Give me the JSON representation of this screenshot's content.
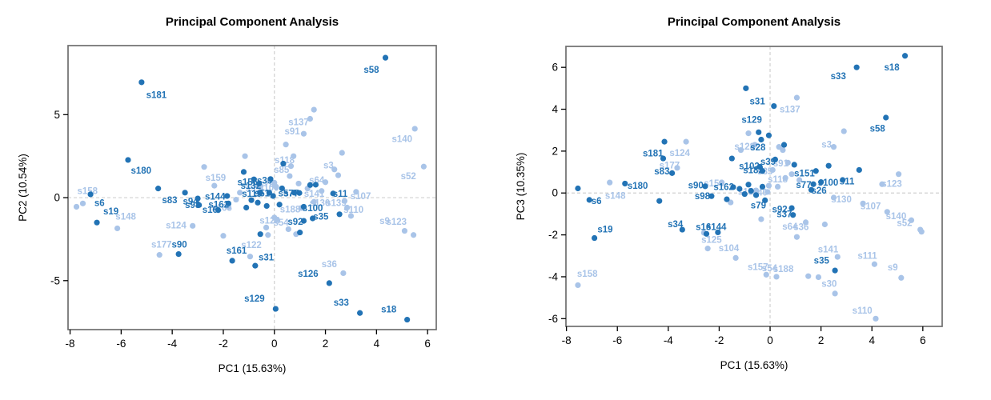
{
  "figure": {
    "background": "#ffffff",
    "colors": {
      "dark_points": "#2273b5",
      "light_points": "#a9c4e8",
      "axis_text": "#000000",
      "box_border": "#6e6e6e",
      "ref_line": "#d0d0d0"
    }
  },
  "chart_data": [
    {
      "type": "scatter",
      "title": "Principal Component Analysis",
      "xlabel": "PC1 (15.63%)",
      "ylabel": "PC2 (10.54%)",
      "xlim": [
        -8.08,
        6.34
      ],
      "ylim": [
        -7.95,
        9.16
      ],
      "xticks": [
        -8,
        -6,
        -4,
        -2,
        0,
        2,
        4,
        6
      ],
      "yticks": [
        -5,
        0,
        5
      ],
      "grid": "dashed reference lines at x=0 and y=0",
      "legend": "none",
      "point_format": "[x, y, shade(d=dark|l=light), label?, labelX?, labelY?]",
      "points": [
        [
          4.35,
          8.43,
          "d",
          "s58",
          3.8,
          7.72
        ],
        [
          -5.2,
          6.95,
          "d",
          "s181",
          -4.62,
          6.2
        ],
        [
          -5.73,
          2.27,
          "d",
          "s180",
          -5.22,
          1.65
        ],
        [
          -7.2,
          0.2,
          "d",
          "s6",
          -6.85,
          -0.32
        ],
        [
          -6.95,
          -1.5,
          "d",
          "s19",
          -6.4,
          -0.82
        ],
        [
          -3.5,
          0.3,
          "d",
          "s83",
          -4.1,
          -0.15
        ],
        [
          -3.75,
          -3.4,
          "d",
          "s90",
          -3.72,
          -2.82
        ],
        [
          -3.0,
          -0.05,
          "d",
          "s94",
          -3.28,
          -0.22
        ],
        [
          -2.95,
          -0.45,
          "d",
          "s98",
          -3.2,
          -0.42
        ],
        [
          -1.85,
          0.1,
          "d",
          "s144",
          -2.32,
          0.08
        ],
        [
          -1.8,
          -0.35,
          "d",
          "s162",
          -2.18,
          -0.4
        ],
        [
          -2.2,
          -0.75,
          "d",
          "s16",
          -2.52,
          -0.72
        ],
        [
          -1.65,
          -3.8,
          "d",
          "s161",
          -1.48,
          -3.18
        ],
        [
          -0.75,
          -4.1,
          "d",
          "s31",
          -0.32,
          -3.58
        ],
        [
          0.05,
          -6.7,
          "d",
          "s129",
          -0.78,
          -6.08
        ],
        [
          2.15,
          -5.15,
          "d",
          "s126",
          1.32,
          -4.58
        ],
        [
          3.35,
          -6.95,
          "d",
          "s33",
          2.62,
          -6.32
        ],
        [
          5.2,
          -7.35,
          "d",
          "s18",
          4.48,
          -6.72
        ],
        [
          2.3,
          0.25,
          "d",
          "s11",
          2.58,
          0.25
        ],
        [
          1.15,
          -0.55,
          "d",
          "s100",
          1.5,
          -0.62
        ],
        [
          1.5,
          -1.25,
          "d",
          "s35",
          1.82,
          -1.12
        ],
        [
          1.15,
          -1.4,
          "d",
          "s92",
          0.82,
          -1.45
        ],
        [
          -0.8,
          1.1,
          "d",
          "s155",
          -1.05,
          0.95
        ],
        [
          -0.6,
          0.85,
          "d",
          "s132",
          -0.92,
          0.72
        ],
        [
          -0.55,
          0.3,
          "d",
          "s119",
          -0.88,
          0.25
        ],
        [
          -0.2,
          0.3,
          "d",
          "s51",
          -0.48,
          0.26
        ],
        [
          0.78,
          0.3,
          "d",
          "s57",
          0.45,
          0.27
        ],
        [
          0.98,
          0.28,
          "d",
          "s77",
          0.66,
          0.26
        ],
        [
          -0.15,
          1.12,
          "d",
          "s39",
          -0.38,
          1.04
        ],
        [
          -7.5,
          -0.35,
          "l",
          "s158",
          -7.32,
          0.42
        ],
        [
          -6.15,
          -1.85,
          "l",
          "s148",
          -5.82,
          -1.12
        ],
        [
          -3.2,
          -1.7,
          "l",
          "s124",
          -3.85,
          -1.65
        ],
        [
          -4.5,
          -3.45,
          "l",
          "s177",
          -4.42,
          -2.82
        ],
        [
          -2.35,
          0.72,
          "l",
          "s159",
          -2.3,
          1.2
        ],
        [
          -0.95,
          -3.55,
          "l",
          "s122",
          -0.9,
          -2.85
        ],
        [
          2.7,
          -4.55,
          "l",
          "s36",
          2.15,
          -4.0
        ],
        [
          1.4,
          4.75,
          "l",
          "s137",
          0.95,
          4.55
        ],
        [
          1.15,
          3.85,
          "l",
          "s91",
          0.7,
          4.0
        ],
        [
          5.5,
          4.15,
          "l",
          "s140",
          5.0,
          3.55
        ],
        [
          5.85,
          1.87,
          "l",
          "s52",
          5.25,
          1.3
        ],
        [
          2.35,
          1.7,
          "l",
          "s3",
          2.12,
          1.95
        ],
        [
          2.0,
          0.93,
          "l",
          "s64",
          1.66,
          1.06
        ],
        [
          0.75,
          2.5,
          "l",
          "s118",
          0.4,
          2.26
        ],
        [
          0.65,
          1.9,
          "l",
          "s85",
          0.28,
          1.68
        ],
        [
          3.2,
          0.35,
          "l",
          "s107",
          3.38,
          0.1
        ],
        [
          2.85,
          -0.6,
          "l",
          "s110",
          3.1,
          -0.72
        ],
        [
          5.1,
          -2.0,
          "l",
          "s9",
          4.32,
          -1.4
        ],
        [
          5.45,
          -2.25,
          "l",
          "s123",
          4.78,
          -1.45
        ],
        [
          1.55,
          -0.25,
          "l",
          "s130",
          1.78,
          -0.32
        ],
        [
          2.75,
          -0.2,
          "l",
          "s139",
          2.42,
          -0.32
        ],
        [
          1.05,
          -0.62,
          "l",
          "s188",
          0.62,
          -0.7
        ],
        [
          0.1,
          -1.32,
          "l",
          "s54",
          0.26,
          -1.5
        ],
        [
          0.0,
          -1.2,
          "l",
          "s128",
          -0.18,
          -1.36
        ],
        [
          -0.55,
          0.65,
          "l",
          "s99",
          -0.84,
          0.56
        ],
        [
          0.0,
          0.9,
          "l",
          "s70",
          -0.3,
          0.82
        ],
        [
          0.07,
          0.65,
          "l",
          "s109",
          -0.22,
          0.6
        ],
        [
          -1.8,
          -0.55,
          "l",
          "s165",
          -2.06,
          -0.6
        ],
        [
          1.85,
          0.4,
          "l",
          "s141",
          1.56,
          0.24
        ],
        [
          -1.2,
          1.55,
          "d"
        ],
        [
          1.4,
          0.76,
          "d"
        ],
        [
          1.62,
          0.78,
          "d"
        ],
        [
          -4.55,
          0.55,
          "d"
        ],
        [
          0.35,
          2.05,
          "d"
        ],
        [
          -0.9,
          -0.15,
          "d"
        ],
        [
          -0.65,
          -0.3,
          "d"
        ],
        [
          -1.1,
          -0.6,
          "d"
        ],
        [
          -0.3,
          -0.5,
          "d"
        ],
        [
          0.2,
          -0.42,
          "d"
        ],
        [
          -0.05,
          0.1,
          "d"
        ],
        [
          0.3,
          0.56,
          "d"
        ],
        [
          2.55,
          -1.0,
          "d"
        ],
        [
          1.0,
          -2.1,
          "d"
        ],
        [
          -0.55,
          -2.2,
          "d"
        ],
        [
          1.55,
          5.3,
          "l"
        ],
        [
          2.65,
          2.7,
          "l"
        ],
        [
          -2.75,
          1.85,
          "l"
        ],
        [
          2.5,
          1.35,
          "l"
        ],
        [
          0.45,
          3.2,
          "l"
        ],
        [
          -1.15,
          2.5,
          "l"
        ],
        [
          -0.25,
          -2.25,
          "l"
        ],
        [
          0.85,
          -2.2,
          "l"
        ],
        [
          -2.0,
          -2.3,
          "l"
        ],
        [
          -0.32,
          -1.8,
          "l"
        ],
        [
          0.55,
          -1.9,
          "l"
        ],
        [
          -1.35,
          0.3,
          "l"
        ],
        [
          -1.5,
          -0.12,
          "l"
        ],
        [
          1.3,
          0.55,
          "l"
        ],
        [
          0.95,
          0.85,
          "l"
        ],
        [
          0.6,
          1.3,
          "l"
        ],
        [
          -7.75,
          -0.55,
          "l"
        ],
        [
          3.0,
          -1.1,
          "l"
        ]
      ]
    },
    {
      "type": "scatter",
      "title": "Principal Component Analysis",
      "xlabel": "PC1 (15.63%)",
      "ylabel": "PC3 (10.35%)",
      "xlim": [
        -8.02,
        6.76
      ],
      "ylim": [
        -6.37,
        7.0
      ],
      "xticks": [
        -8,
        -6,
        -4,
        -2,
        0,
        2,
        4,
        6
      ],
      "yticks": [
        -6,
        -4,
        -2,
        0,
        2,
        4,
        6
      ],
      "grid": "dashed reference lines at x=0 and y=0",
      "legend": "none",
      "point_format": "[x, y, shade(d=dark|l=light), label?, labelX?, labelY?]",
      "points": [
        [
          5.3,
          6.55,
          "d",
          "s18",
          4.78,
          6.0
        ],
        [
          3.4,
          6.0,
          "d",
          "s33",
          2.68,
          5.58
        ],
        [
          0.15,
          4.15,
          "d",
          "s31",
          -0.5,
          4.38
        ],
        [
          -0.45,
          2.9,
          "d",
          "s129",
          -0.72,
          3.5
        ],
        [
          4.55,
          3.6,
          "d",
          "s58",
          4.22,
          3.08
        ],
        [
          -4.2,
          1.65,
          "d",
          "s181",
          -4.6,
          1.9
        ],
        [
          -3.85,
          0.95,
          "d",
          "s83",
          -4.25,
          1.05
        ],
        [
          -0.35,
          2.55,
          "d",
          "s28",
          -0.48,
          2.18
        ],
        [
          -5.7,
          0.45,
          "d",
          "s180",
          -5.2,
          0.35
        ],
        [
          -7.1,
          -0.33,
          "d",
          "s6",
          -6.82,
          -0.38
        ],
        [
          -2.55,
          0.32,
          "d",
          "s90",
          -2.92,
          0.38
        ],
        [
          -2.3,
          -0.15,
          "d",
          "s98",
          -2.66,
          -0.15
        ],
        [
          -3.45,
          -1.75,
          "d",
          "s34",
          -3.72,
          -1.48
        ],
        [
          -2.5,
          -1.95,
          "d",
          "s16",
          -2.62,
          -1.62
        ],
        [
          -2.05,
          -1.88,
          "d",
          "s144",
          -2.12,
          -1.62
        ],
        [
          -6.9,
          -2.15,
          "d",
          "s19",
          -6.48,
          -1.72
        ],
        [
          2.55,
          -3.7,
          "d",
          "s35",
          2.02,
          -3.22
        ],
        [
          1.8,
          1.05,
          "d",
          "s151",
          1.35,
          0.95
        ],
        [
          1.7,
          0.42,
          "d",
          "s77",
          1.32,
          0.4
        ],
        [
          2.0,
          0.52,
          "d",
          "s100",
          2.28,
          0.5
        ],
        [
          2.85,
          0.62,
          "d",
          "s11",
          3.02,
          0.56
        ],
        [
          1.62,
          0.15,
          "d",
          "s26",
          1.92,
          0.12
        ],
        [
          0.85,
          -0.72,
          "d",
          "s92",
          0.38,
          -0.78
        ],
        [
          0.9,
          -1.05,
          "d",
          "s37",
          0.56,
          -1.0
        ],
        [
          -0.2,
          -0.35,
          "d",
          "s79",
          -0.46,
          -0.58
        ],
        [
          0.2,
          1.6,
          "d",
          "s39",
          -0.08,
          1.5
        ],
        [
          -0.4,
          1.25,
          "d",
          "s102",
          -0.82,
          1.28
        ],
        [
          -0.3,
          1.05,
          "d",
          "s182",
          -0.66,
          1.1
        ],
        [
          -1.45,
          0.28,
          "d",
          "s162",
          -1.82,
          0.3
        ],
        [
          1.05,
          4.55,
          "l",
          "s137",
          0.78,
          4.0
        ],
        [
          2.5,
          2.2,
          "l",
          "s3",
          2.22,
          2.32
        ],
        [
          -3.3,
          2.45,
          "l",
          "s124",
          -3.55,
          1.92
        ],
        [
          -3.65,
          1.2,
          "l",
          "s177",
          -3.95,
          1.32
        ],
        [
          -6.3,
          0.5,
          "l",
          "s148",
          -6.08,
          -0.12
        ],
        [
          -0.6,
          2.3,
          "l",
          "s128",
          -1.0,
          2.22
        ],
        [
          4.4,
          0.42,
          "l",
          "s123",
          4.78,
          0.45
        ],
        [
          3.65,
          -0.5,
          "l",
          "s107",
          3.95,
          -0.62
        ],
        [
          2.5,
          -0.22,
          "l",
          "s130",
          2.8,
          -0.3
        ],
        [
          5.55,
          -1.3,
          "l",
          "s140",
          4.95,
          -1.1
        ],
        [
          5.9,
          -1.75,
          "l",
          "s52",
          5.28,
          -1.42
        ],
        [
          1.4,
          -1.4,
          "l",
          "s36",
          1.22,
          -1.62
        ],
        [
          1.05,
          -2.1,
          "l",
          "s64",
          0.78,
          -1.6
        ],
        [
          -2.45,
          -2.65,
          "l",
          "s125",
          -2.3,
          -2.22
        ],
        [
          -1.35,
          -3.1,
          "l",
          "s104",
          -1.62,
          -2.62
        ],
        [
          -7.55,
          -4.4,
          "l",
          "s158",
          -7.18,
          -3.85
        ],
        [
          -0.15,
          -3.9,
          "l",
          "s157",
          -0.48,
          -3.52
        ],
        [
          0.25,
          -4.0,
          "l",
          "s54",
          -0.02,
          -3.58
        ],
        [
          1.5,
          -3.97,
          "l",
          "s188",
          0.52,
          -3.62
        ],
        [
          2.65,
          -3.05,
          "l",
          "s141",
          2.28,
          -2.68
        ],
        [
          4.1,
          -3.4,
          "l",
          "s111",
          3.82,
          -2.98
        ],
        [
          5.15,
          -4.05,
          "l",
          "s9",
          4.82,
          -3.55
        ],
        [
          2.55,
          -4.8,
          "l",
          "s30",
          2.32,
          -4.32
        ],
        [
          4.15,
          -6.0,
          "l",
          "s110",
          3.62,
          -5.6
        ],
        [
          0.7,
          1.45,
          "l",
          "s91",
          0.42,
          1.42
        ],
        [
          0.1,
          1.1,
          "l",
          "s85",
          -0.2,
          1.05
        ],
        [
          0.6,
          0.72,
          "l",
          "s118",
          0.3,
          0.66
        ],
        [
          -0.1,
          0.05,
          "l",
          "s40",
          -0.4,
          0.02
        ],
        [
          -0.55,
          0.12,
          "l",
          "s155",
          -0.86,
          0.06
        ],
        [
          -1.9,
          0.5,
          "l",
          "s159",
          -2.2,
          0.46
        ],
        [
          -0.95,
          5.0,
          "d"
        ],
        [
          -0.05,
          2.75,
          "d"
        ],
        [
          0.55,
          2.3,
          "d"
        ],
        [
          2.3,
          1.3,
          "d"
        ],
        [
          3.5,
          1.1,
          "d"
        ],
        [
          -4.15,
          2.45,
          "d"
        ],
        [
          -1.5,
          1.65,
          "d"
        ],
        [
          -7.55,
          0.22,
          "d"
        ],
        [
          -4.35,
          -0.38,
          "d"
        ],
        [
          -1.0,
          -0.05,
          "d"
        ],
        [
          -0.75,
          0.1,
          "d"
        ],
        [
          -0.55,
          -0.1,
          "d"
        ],
        [
          -1.2,
          0.2,
          "d"
        ],
        [
          -0.85,
          0.4,
          "d"
        ],
        [
          0.95,
          1.35,
          "d"
        ],
        [
          -1.7,
          -0.3,
          "d"
        ],
        [
          -0.3,
          0.3,
          "d"
        ],
        [
          0.35,
          2.2,
          "l"
        ],
        [
          0.5,
          2.05,
          "l"
        ],
        [
          -0.85,
          2.85,
          "l"
        ],
        [
          2.9,
          2.95,
          "l"
        ],
        [
          5.05,
          0.9,
          "l"
        ],
        [
          -2.6,
          -1.9,
          "l"
        ],
        [
          4.6,
          -0.9,
          "l"
        ],
        [
          -0.35,
          -1.25,
          "l"
        ],
        [
          0.85,
          0.9,
          "l"
        ],
        [
          1.15,
          0.62,
          "l"
        ],
        [
          -0.05,
          0.35,
          "l"
        ],
        [
          -1.55,
          -0.45,
          "l"
        ],
        [
          2.15,
          -1.5,
          "l"
        ],
        [
          1.9,
          -4.02,
          "l"
        ],
        [
          -1.15,
          2.05,
          "l"
        ],
        [
          0.3,
          0.3,
          "l"
        ],
        [
          5.95,
          -1.85,
          "l"
        ]
      ]
    }
  ]
}
